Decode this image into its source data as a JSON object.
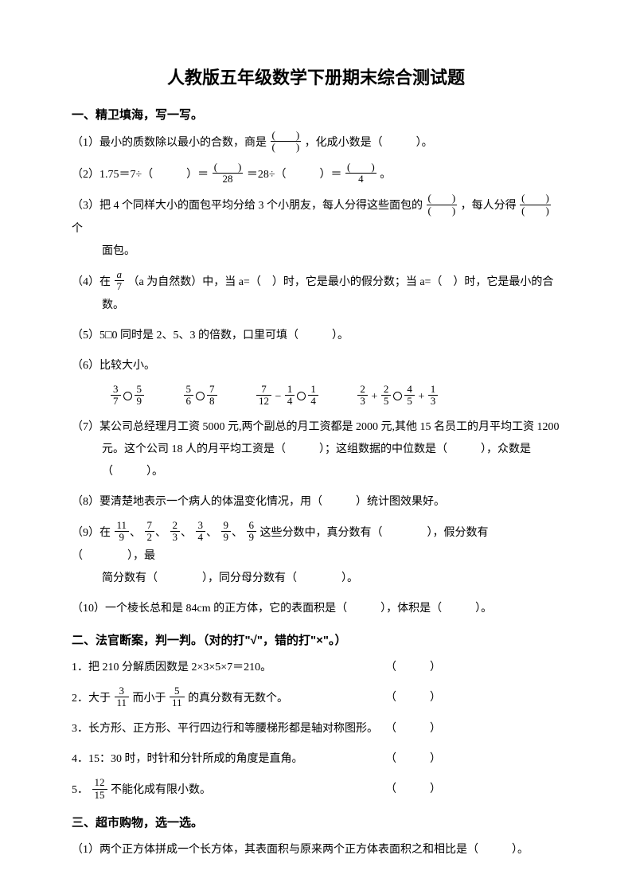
{
  "title": "人教版五年级数学下册期末综合测试题",
  "s1": {
    "head": "一、精卫填海，写一写。",
    "q1a": "（1）最小的质数除以最小的合数，商是",
    "q1b": "，化成小数是（　　　）。",
    "q2a": "（2）1.75＝7÷（　　　）＝",
    "q2b": "＝28÷（　　　）＝",
    "q2c": "。",
    "q3a": "（3）把 4 个同样大小的面包平均分给 3 个小朋友，每人分得这些面包的",
    "q3b": "，每人分得",
    "q3c": "个",
    "q3d": "面包。",
    "q4a": "（4）在",
    "q4b": "（a 为自然数）中，当 a=（　）时，它是最小的假分数；当 a=（　）时，它是最小的合",
    "q4c": "数。",
    "q5": "（5）5□0 同时是 2、5、3 的倍数，口里可填（　　　）。",
    "q6": "（6）比较大小。",
    "q7a": "（7）某公司总经理月工资 5000 元,两个副总的月工资都是 2000 元,其他 15 名员工的月平均工资 1200",
    "q7b": "元。这个公司 18 人的月平均工资是（　　　）；这组数据的中位数是（　　　），众数是",
    "q7c": "（　　　）。",
    "q8": "（8）要清楚地表示一个病人的体温变化情况，用（　　　）统计图效果好。",
    "q9a": "（9）在",
    "q9b": "这些分数中，真分数有（　　　　），假分数有（　　　　），最",
    "q9c": "简分数有（　　　　），同分母分数有（　　　　）。",
    "q10": "（10）一个棱长总和是 84cm 的正方体，它的表面积是（　　　），体积是（　　　）。"
  },
  "s2": {
    "head": "二、法官断案，判一判。（对的打\"√\"，错的打\"×\"。）",
    "q1": "1．把 210 分解质因数是 2×3×5×7＝210。",
    "q2a": "2．大于",
    "q2b": "而小于",
    "q2c": "的真分数有无数个。",
    "q3": "3．长方形、正方形、平行四边行和等腰梯形都是轴对称图形。",
    "q4": "4．15：30 时，时针和分针所成的角度是直角。",
    "q5a": "5．",
    "q5b": "不能化成有限小数。",
    "paren": "（　　　）"
  },
  "s3": {
    "head": "三、超市购物，选一选。",
    "q1": "（1）两个正方体拼成一个长方体，其表面积与原来两个正方体表面积之和相比是（　　　）。"
  },
  "fr": {
    "paren": "(　　)",
    "blank28": "28",
    "blank4": "4",
    "a": "a",
    "n7": "7",
    "n3": "3",
    "n5": "5",
    "n9": "9",
    "n6": "6",
    "n8": "8",
    "n12": "12",
    "n1": "1",
    "n4": "4",
    "n2": "2",
    "n11": "11",
    "n15": "15",
    "sep": "、"
  }
}
